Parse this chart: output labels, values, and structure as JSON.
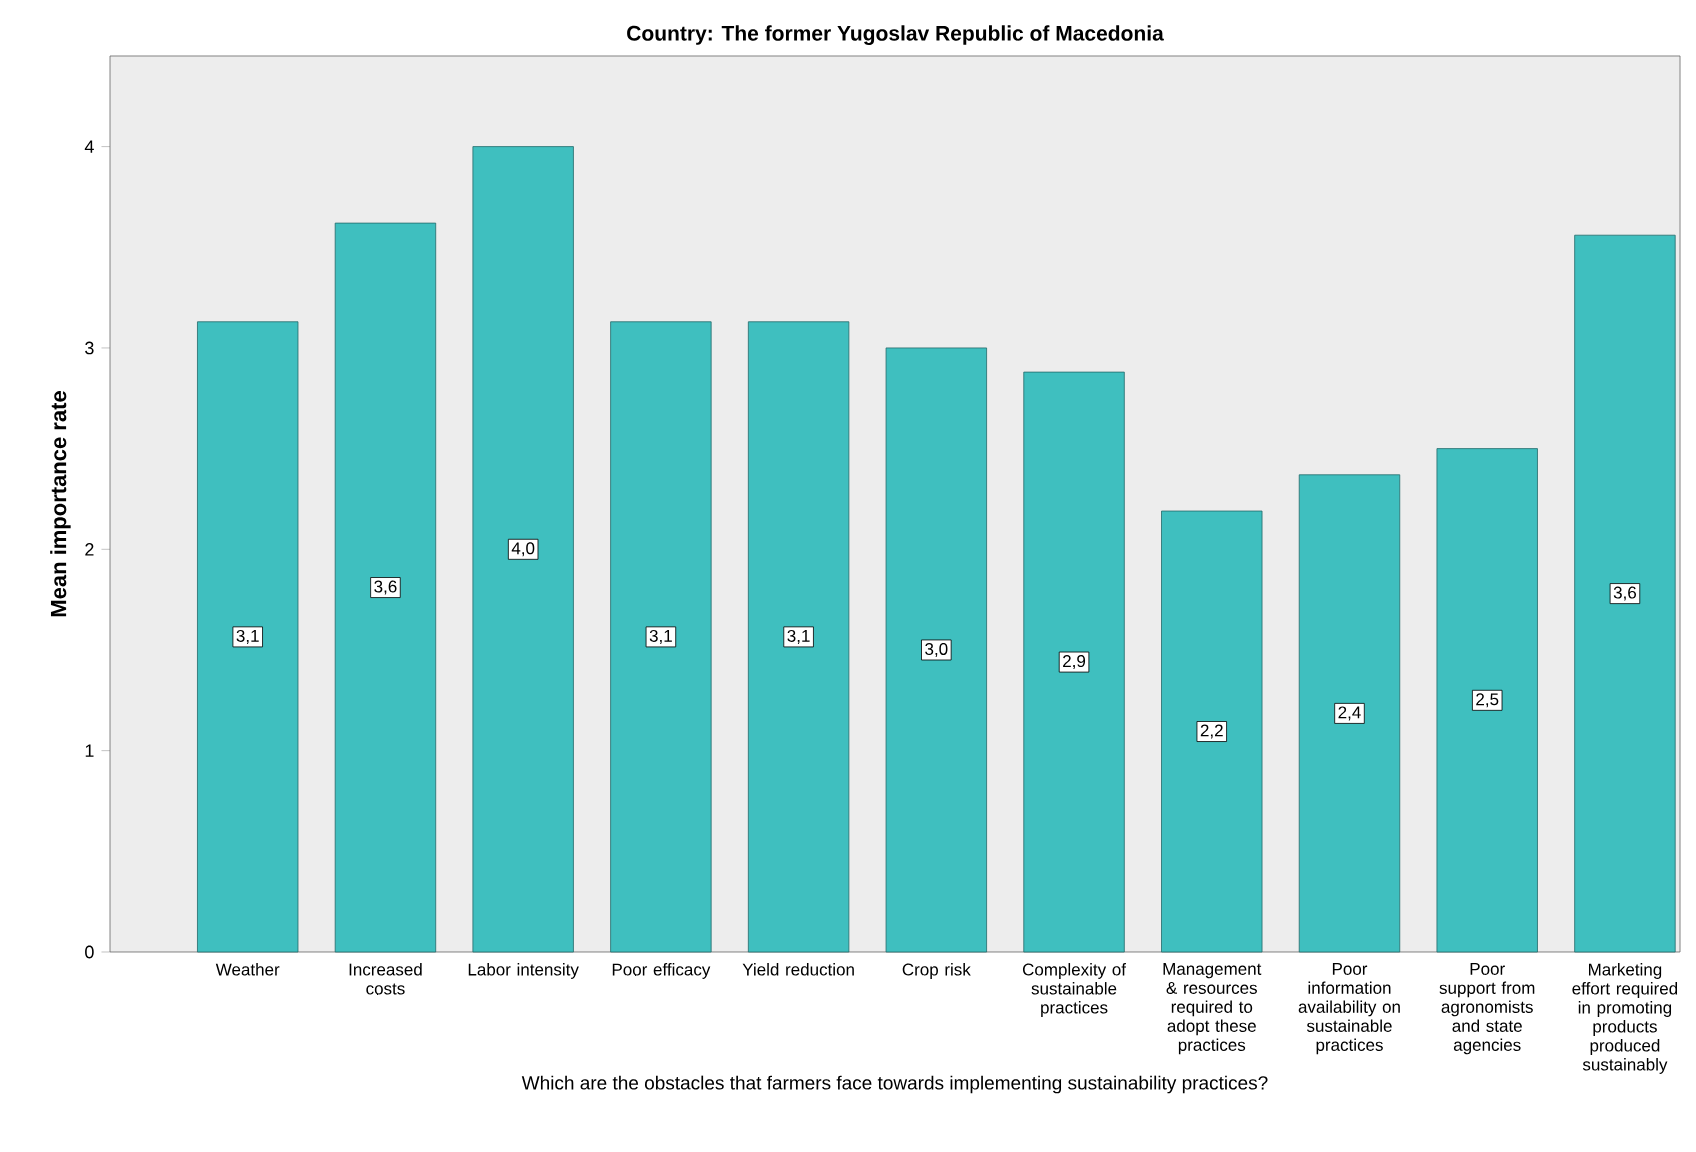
{
  "chart_data": {
    "type": "bar",
    "title": "Country: The former Yugoslav Republic of Macedonia",
    "xlabel": "Which are the obstacles that farmers face towards implementing sustainability practices?",
    "ylabel": "Mean importance rate",
    "categories": [
      "Weather",
      "Increased costs",
      "Labor intensity",
      "Poor efficacy",
      "Yield reduction",
      "Crop risk",
      "Complexity of sustainable practices",
      "Management & resources required to adopt these practices",
      "Poor information availability on sustainable practices",
      "Poor support from agronomists and state agencies",
      "Marketing effort required in promoting products produced sustainably"
    ],
    "values": [
      3.13,
      3.62,
      4.0,
      3.13,
      3.13,
      3.0,
      2.88,
      2.19,
      2.37,
      2.5,
      3.56
    ],
    "value_labels": [
      "3,1",
      "3,6",
      "4,0",
      "3,1",
      "3,1",
      "3,0",
      "2,9",
      "2,2",
      "2,4",
      "2,5",
      "3,6"
    ],
    "color": "#3fbfbf",
    "ylim": [
      0,
      4.45
    ],
    "yticks": [
      0,
      1,
      2,
      3,
      4
    ],
    "grid": false
  }
}
